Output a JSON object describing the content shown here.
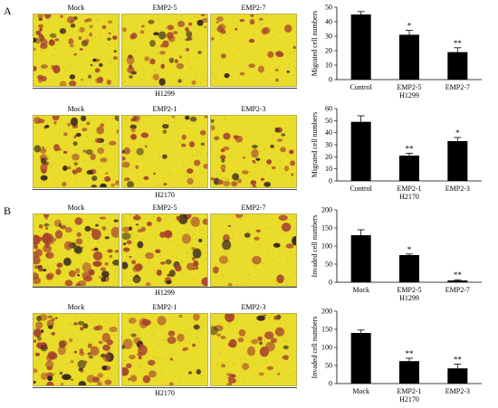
{
  "panels": [
    {
      "letter": "A",
      "rows": [
        {
          "titles": [
            "Mock",
            "EMP2-5",
            "EMP2-7"
          ],
          "cell_line": "H1299",
          "densities": [
            0.75,
            0.5,
            0.25
          ]
        },
        {
          "titles": [
            "Mock",
            "EMP2-1",
            "EMP2-3"
          ],
          "cell_line": "H2170",
          "densities": [
            0.7,
            0.35,
            0.45
          ]
        }
      ]
    },
    {
      "letter": "B",
      "rows": [
        {
          "titles": [
            "Mock",
            "EMP2-5",
            "EMP2-7"
          ],
          "cell_line": "H1299",
          "densities": [
            1.0,
            0.6,
            0.1
          ]
        },
        {
          "titles": [
            "Mock",
            "EMP2-1",
            "EMP2-3"
          ],
          "cell_line": "H2170",
          "densities": [
            0.9,
            0.35,
            0.35
          ]
        }
      ]
    }
  ],
  "chart_data": [
    {
      "type": "bar",
      "categories": [
        "Control",
        "EMP2-5",
        "EMP2-7"
      ],
      "values": [
        45,
        31,
        19
      ],
      "errors": [
        2,
        3,
        3
      ],
      "significance": [
        "",
        "*",
        "**"
      ],
      "ylabel": "Migrated cell numbers",
      "ylim": [
        0,
        50
      ],
      "yticks": [
        0,
        10,
        20,
        30,
        40,
        50
      ],
      "xlabel": "H1299",
      "bar_color": "#000000"
    },
    {
      "type": "bar",
      "categories": [
        "Control",
        "EMP2-1",
        "EMP2-3"
      ],
      "values": [
        49,
        21,
        33
      ],
      "errors": [
        5,
        2,
        3
      ],
      "significance": [
        "",
        "**",
        "*"
      ],
      "ylabel": "Migrated cell numbers",
      "ylim": [
        0,
        60
      ],
      "yticks": [
        0,
        10,
        20,
        30,
        40,
        50,
        60
      ],
      "xlabel": "H2170",
      "bar_color": "#000000"
    },
    {
      "type": "bar",
      "categories": [
        "Mock",
        "EMP2-5",
        "EMP2-7"
      ],
      "values": [
        130,
        75,
        5
      ],
      "errors": [
        15,
        3,
        2
      ],
      "significance": [
        "",
        "*",
        "**"
      ],
      "ylabel": "Invaded cell numbers",
      "ylim": [
        0,
        200
      ],
      "yticks": [
        0,
        50,
        100,
        150,
        200
      ],
      "xlabel": "H1299",
      "bar_color": "#000000"
    },
    {
      "type": "bar",
      "categories": [
        "Mock",
        "EMP2-1",
        "EMP2-3"
      ],
      "values": [
        140,
        62,
        42
      ],
      "errors": [
        8,
        8,
        12
      ],
      "significance": [
        "",
        "**",
        "**"
      ],
      "ylabel": "Invaded cell numbers",
      "ylim": [
        0,
        200
      ],
      "yticks": [
        0,
        50,
        100,
        150,
        200
      ],
      "xlabel": "H2170",
      "bar_color": "#000000"
    }
  ],
  "colors": {
    "background": "#e9dc2a",
    "cell": "#a8452f",
    "dark_cell": "#3a2a1e"
  }
}
